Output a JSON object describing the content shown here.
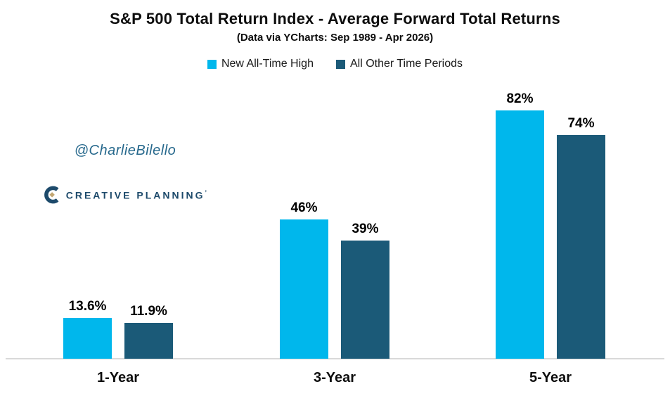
{
  "header": {
    "title": "S&P 500 Total Return Index - Average Forward Total Returns",
    "subtitle": "(Data via YCharts: Sep 1989 - Apr 2026)"
  },
  "legend": [
    {
      "label": "New All-Time High",
      "color": "#00b7ec"
    },
    {
      "label": "All Other Time Periods",
      "color": "#1b5a78"
    }
  ],
  "watermark": {
    "handle": "@CharlieBilello",
    "handle_color": "#26688c",
    "logo_text": "CREATIVE PLANNING",
    "logo_mark": "’",
    "logo_color": "#1d4a6b",
    "logo_gold": "#c2a672",
    "logo_icon": "creative-planning-c-icon"
  },
  "chart_data": {
    "type": "bar",
    "title": "S&P 500 Total Return Index - Average Forward Total Returns",
    "subtitle": "(Data via YCharts: Sep 1989 - Apr 2026)",
    "categories": [
      "1-Year",
      "3-Year",
      "5-Year"
    ],
    "series": [
      {
        "name": "New All-Time High",
        "color": "#00b7ec",
        "values": [
          13.6,
          46,
          82
        ],
        "labels": [
          "13.6%",
          "46%",
          "82%"
        ]
      },
      {
        "name": "All Other Time Periods",
        "color": "#1b5a78",
        "values": [
          11.9,
          39,
          74
        ],
        "labels": [
          "11.9%",
          "39%",
          "74%"
        ]
      }
    ],
    "xlabel": "",
    "ylabel": "",
    "ylim": [
      0,
      90
    ],
    "grid": false,
    "legend_position": "top",
    "value_suffix": "%",
    "axis_line_color": "#d9d9d9"
  }
}
